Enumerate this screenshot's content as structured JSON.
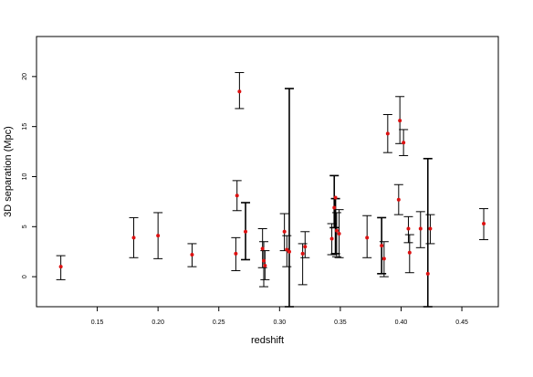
{
  "chart_data": {
    "type": "scatter",
    "title": "",
    "xlabel": "redshift",
    "ylabel": "3D separation (Mpc)",
    "xlim": [
      0.1,
      0.48
    ],
    "ylim": [
      -3,
      24
    ],
    "x_ticks": [
      {
        "value": 0.15,
        "label": "0.15"
      },
      {
        "value": 0.2,
        "label": "0.20"
      },
      {
        "value": 0.25,
        "label": "0.25"
      },
      {
        "value": 0.3,
        "label": "0.30"
      },
      {
        "value": 0.35,
        "label": "0.35"
      },
      {
        "value": 0.4,
        "label": "0.40"
      },
      {
        "value": 0.45,
        "label": "0.45"
      }
    ],
    "y_ticks": [
      {
        "value": 0,
        "label": "0"
      },
      {
        "value": 5,
        "label": "5"
      },
      {
        "value": 10,
        "label": "10"
      },
      {
        "value": 15,
        "label": "15"
      },
      {
        "value": 20,
        "label": "20"
      }
    ],
    "point_color": "#dd1111",
    "errorbar_color": "#000000",
    "points": [
      {
        "x": 0.12,
        "y": 1.0,
        "lo": -0.3,
        "hi": 2.1
      },
      {
        "x": 0.18,
        "y": 3.9,
        "lo": 1.9,
        "hi": 5.9
      },
      {
        "x": 0.2,
        "y": 4.1,
        "lo": 1.8,
        "hi": 6.4
      },
      {
        "x": 0.228,
        "y": 2.2,
        "lo": 1.0,
        "hi": 3.3
      },
      {
        "x": 0.264,
        "y": 2.3,
        "lo": 0.6,
        "hi": 3.9
      },
      {
        "x": 0.265,
        "y": 8.1,
        "lo": 6.6,
        "hi": 9.6
      },
      {
        "x": 0.267,
        "y": 18.5,
        "lo": 16.8,
        "hi": 20.4
      },
      {
        "x": 0.272,
        "y": 4.5,
        "lo": 1.7,
        "hi": 7.4
      },
      {
        "x": 0.286,
        "y": 2.8,
        "lo": 0.9,
        "hi": 4.8
      },
      {
        "x": 0.287,
        "y": 1.6,
        "lo": -1.0,
        "hi": 3.5
      },
      {
        "x": 0.288,
        "y": 1.1,
        "lo": -0.3,
        "hi": 2.6
      },
      {
        "x": 0.304,
        "y": 4.5,
        "lo": 2.6,
        "hi": 6.3
      },
      {
        "x": 0.306,
        "y": 2.7,
        "lo": 1.0,
        "hi": 4.1
      },
      {
        "x": 0.308,
        "y": 2.5,
        "lo": -3.0,
        "hi": 18.8
      },
      {
        "x": 0.319,
        "y": 2.3,
        "lo": -0.8,
        "hi": 3.3
      },
      {
        "x": 0.321,
        "y": 3.0,
        "lo": 1.9,
        "hi": 4.5
      },
      {
        "x": 0.343,
        "y": 3.8,
        "lo": 2.2,
        "hi": 5.3
      },
      {
        "x": 0.345,
        "y": 6.9,
        "lo": 4.9,
        "hi": 10.1
      },
      {
        "x": 0.346,
        "y": 7.9,
        "lo": 2.3,
        "hi": 7.8
      },
      {
        "x": 0.347,
        "y": 4.6,
        "lo": 2.0,
        "hi": 6.4
      },
      {
        "x": 0.349,
        "y": 4.3,
        "lo": 1.9,
        "hi": 6.7
      },
      {
        "x": 0.372,
        "y": 3.9,
        "lo": 1.9,
        "hi": 6.1
      },
      {
        "x": 0.384,
        "y": 3.1,
        "lo": 0.3,
        "hi": 5.9
      },
      {
        "x": 0.386,
        "y": 1.8,
        "lo": 0.0,
        "hi": 3.5
      },
      {
        "x": 0.389,
        "y": 14.3,
        "lo": 12.4,
        "hi": 16.2
      },
      {
        "x": 0.398,
        "y": 7.7,
        "lo": 6.2,
        "hi": 9.2
      },
      {
        "x": 0.399,
        "y": 15.6,
        "lo": 13.3,
        "hi": 18.0
      },
      {
        "x": 0.402,
        "y": 13.4,
        "lo": 12.1,
        "hi": 14.7
      },
      {
        "x": 0.406,
        "y": 4.8,
        "lo": 3.4,
        "hi": 6.0
      },
      {
        "x": 0.407,
        "y": 2.4,
        "lo": 0.4,
        "hi": 4.2
      },
      {
        "x": 0.416,
        "y": 4.8,
        "lo": 2.9,
        "hi": 6.5
      },
      {
        "x": 0.422,
        "y": 0.3,
        "lo": -3.0,
        "hi": 11.8
      },
      {
        "x": 0.424,
        "y": 4.8,
        "lo": 3.3,
        "hi": 6.2
      },
      {
        "x": 0.468,
        "y": 5.3,
        "lo": 3.7,
        "hi": 6.8
      }
    ]
  }
}
